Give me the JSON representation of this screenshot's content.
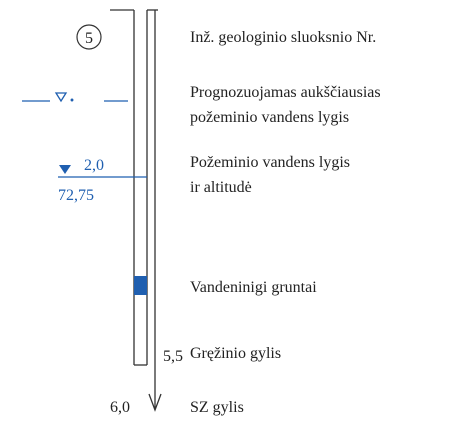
{
  "layer_number": "5",
  "layer_label": "Inž. geologinio sluoksnio Nr.",
  "forecast_label": [
    "Prognozuojamas aukščiausias",
    "požeminio vandens lygis"
  ],
  "water_depth": "2,0",
  "water_altitude": "72,75",
  "water_label": [
    "Požeminio vandens lygis",
    "ir altitudė"
  ],
  "aquifer_label": "Vandeninigi gruntai",
  "borehole_depth": "5,5",
  "borehole_label": "Gręžinio gylis",
  "sz_depth": "6,0",
  "sz_label": "SZ gylis"
}
